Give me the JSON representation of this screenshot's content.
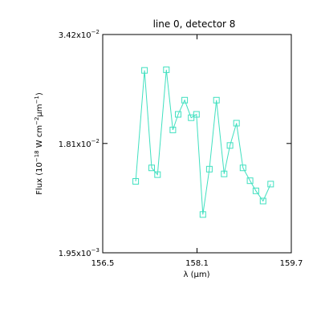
{
  "chart_data": {
    "type": "line",
    "title": "line 0, detector 8",
    "xlabel": "λ (µm)",
    "ylabel": {
      "prefix": "Flux (10",
      "exp1": "−18",
      "mid1": " W cm",
      "exp2": "−2",
      "mid2": "µm",
      "exp3": "−1",
      "suffix": ")"
    },
    "xlim": [
      156.5,
      159.7
    ],
    "ylim": [
      0.00195,
      0.0342
    ],
    "x_ticks": [
      {
        "value": 156.5,
        "label": "156.5"
      },
      {
        "value": 158.1,
        "label": "158.1"
      },
      {
        "value": 159.7,
        "label": "159.7"
      }
    ],
    "y_ticks": [
      {
        "value": 0.00195,
        "mant": "1.95x10",
        "exp": "−3"
      },
      {
        "value": 0.0181,
        "mant": "1.81x10",
        "exp": "−2"
      },
      {
        "value": 0.0342,
        "mant": "3.42x10",
        "exp": "−2"
      }
    ],
    "line_color": "#40e0c0",
    "marker": "square",
    "series": [
      {
        "x": [
          157.06,
          157.21,
          157.33,
          157.43,
          157.58,
          157.69,
          157.78,
          157.89,
          158.0,
          158.09,
          158.2,
          158.31,
          158.43,
          158.56,
          158.66,
          158.77,
          158.88,
          159.0,
          159.1,
          159.22,
          159.35
        ],
        "y": [
          0.0125,
          0.0289,
          0.0145,
          0.0135,
          0.029,
          0.0201,
          0.0224,
          0.0245,
          0.0219,
          0.0224,
          0.0076,
          0.0143,
          0.0245,
          0.0136,
          0.0178,
          0.0211,
          0.0145,
          0.0126,
          0.0111,
          0.0096,
          0.0121
        ]
      }
    ]
  }
}
